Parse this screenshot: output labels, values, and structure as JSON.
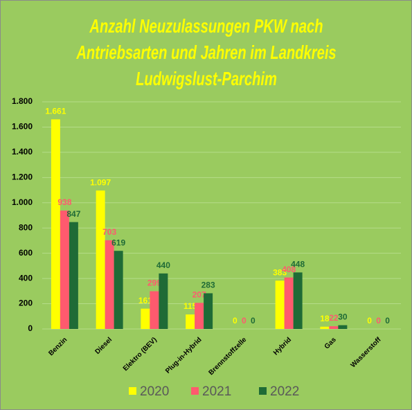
{
  "chart_data": {
    "type": "bar",
    "title": "Anzahl Neuzulassungen PKW nach Antriebsarten und Jahren im Landkreis Ludwigslust-Parchim",
    "categories": [
      "Benzin",
      "Diesel",
      "Elektro (BEV)",
      "Plug-in-Hybrid",
      "Brennstoffzelle",
      "Hybrid",
      "Gas",
      "Wasserstoff"
    ],
    "series": [
      {
        "name": "2020",
        "color": "#ffff00",
        "values": [
          1661,
          1097,
          161,
          115,
          0,
          383,
          18,
          0
        ],
        "value_labels": [
          "1.661",
          "1.097",
          "161",
          "115",
          "0",
          "383",
          "18",
          "0"
        ]
      },
      {
        "name": "2021",
        "color": "#ff5a6e",
        "values": [
          938,
          703,
          299,
          207,
          0,
          408,
          22,
          0
        ]
      },
      {
        "name": "2022",
        "color": "#1f6b36",
        "values": [
          847,
          619,
          440,
          283,
          0,
          448,
          30,
          0
        ]
      }
    ],
    "ylim": [
      0,
      1800
    ],
    "yticks": [
      0,
      200,
      400,
      600,
      800,
      {
        "value": 1000,
        "label": "1.000"
      },
      {
        "value": 1200,
        "label": "1.200"
      },
      {
        "value": 1400,
        "label": "1.400"
      },
      {
        "value": 1600,
        "label": "1.600"
      },
      {
        "value": 1800,
        "label": "1.800"
      }
    ],
    "grid": true,
    "legend": "bottom"
  }
}
